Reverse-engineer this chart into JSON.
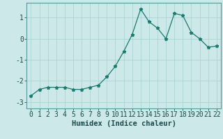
{
  "x": [
    0,
    1,
    2,
    3,
    4,
    5,
    6,
    7,
    8,
    9,
    10,
    11,
    12,
    13,
    14,
    15,
    16,
    17,
    18,
    19,
    20,
    21,
    22
  ],
  "y": [
    -2.7,
    -2.4,
    -2.3,
    -2.3,
    -2.3,
    -2.4,
    -2.4,
    -2.3,
    -2.2,
    -1.8,
    -1.3,
    -0.6,
    0.2,
    1.4,
    0.8,
    0.5,
    0.0,
    1.2,
    1.1,
    0.3,
    0.0,
    -0.4,
    -0.35
  ],
  "line_color": "#1a7a6e",
  "marker": "*",
  "marker_size": 3.5,
  "background_color": "#cce8e8",
  "grid_color": "#aad4d4",
  "xlabel": "Humidex (Indice chaleur)",
  "xlabel_fontsize": 7.5,
  "tick_fontsize": 7,
  "ylim": [
    -3.3,
    1.7
  ],
  "xlim": [
    -0.5,
    22.5
  ],
  "yticks": [
    -3,
    -2,
    -1,
    0,
    1
  ],
  "xticks": [
    0,
    1,
    2,
    3,
    4,
    5,
    6,
    7,
    8,
    9,
    10,
    11,
    12,
    13,
    14,
    15,
    16,
    17,
    18,
    19,
    20,
    21,
    22
  ],
  "spine_color": "#5a9a9a",
  "tick_color": "#1a4a4a"
}
